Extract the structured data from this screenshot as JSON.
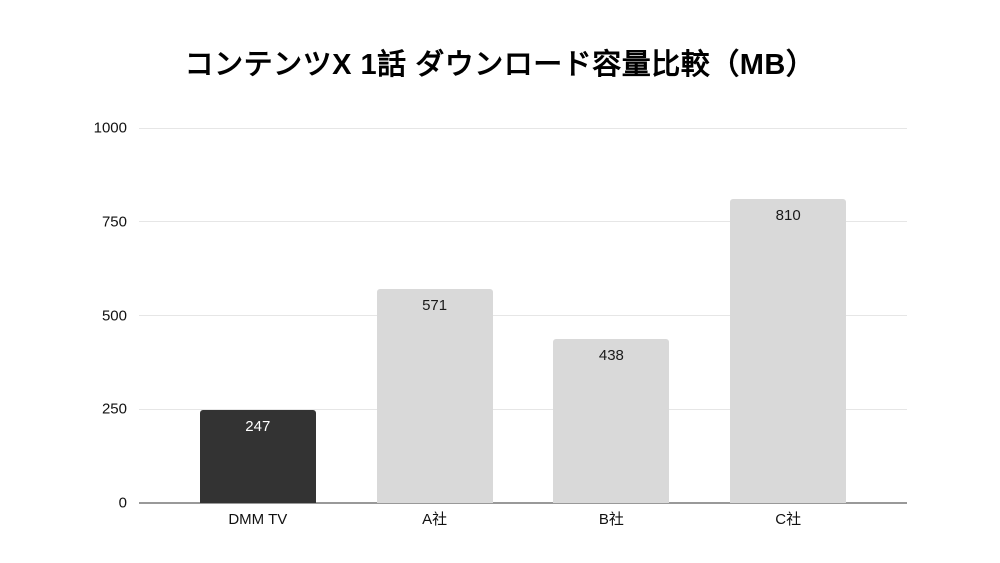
{
  "title": "コンテンツX 1話 ダウンロード容量比較（MB）",
  "chart_data": {
    "type": "bar",
    "title": "コンテンツX 1話 ダウンロード容量比較（MB）",
    "categories": [
      "DMM TV",
      "A社",
      "B社",
      "C社"
    ],
    "values": [
      247,
      571,
      438,
      810
    ],
    "value_labels": [
      "247",
      "571",
      "438",
      "810"
    ],
    "xlabel": "",
    "ylabel": "",
    "ylim": [
      0,
      1000
    ],
    "yticks": [
      0,
      250,
      500,
      750,
      1000
    ],
    "grid": true,
    "legend": "none",
    "highlight_index": 0,
    "bar_colors": [
      "#333333",
      "#d9d9d9",
      "#d9d9d9",
      "#d9d9d9"
    ],
    "value_label_colors": [
      "#ffffff",
      "#1a1a1a",
      "#1a1a1a",
      "#1a1a1a"
    ]
  },
  "colors": {
    "background": "#ffffff",
    "gridline": "#e6e6e6",
    "axis_line": "#999999",
    "title_text": "#000000",
    "tick_text": "#111111"
  }
}
